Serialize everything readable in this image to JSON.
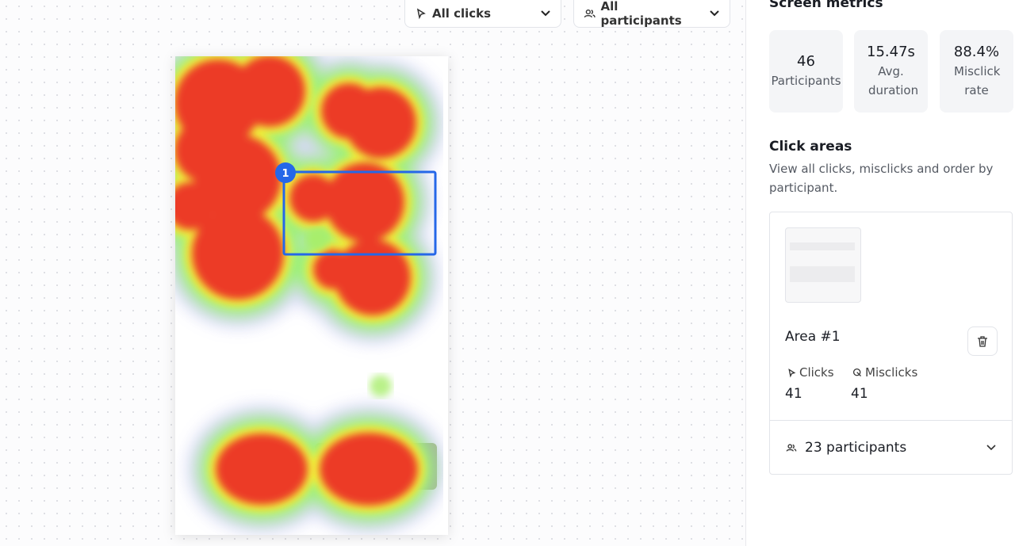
{
  "filters": {
    "clicks": "All clicks",
    "participants": "All participants"
  },
  "heatmap": {
    "area_badge": "1"
  },
  "sidebar": {
    "title": "Screen metrics",
    "metrics": [
      {
        "value": "46",
        "label": "Participants"
      },
      {
        "value": "15.47s",
        "label": "Avg. duration"
      },
      {
        "value": "88.4%",
        "label": "Misclick rate"
      }
    ],
    "click_areas": {
      "title": "Click areas",
      "description": "View all clicks, misclicks and order by participant.",
      "area": {
        "name": "Area #1",
        "clicks_label": "Clicks",
        "clicks": "41",
        "misclicks_label": "Misclicks",
        "misclicks": "41",
        "participants": "23 participants"
      }
    }
  }
}
